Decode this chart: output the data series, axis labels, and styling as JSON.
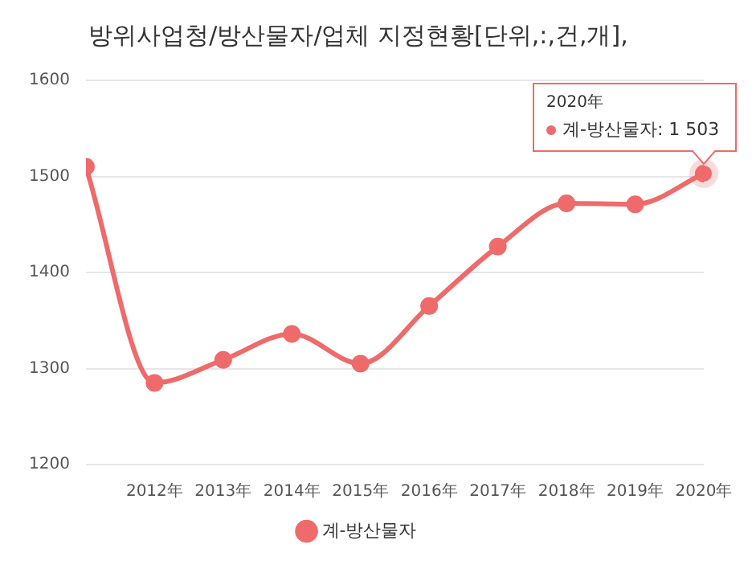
{
  "chart_data": {
    "type": "line",
    "title": "방위사업청/방산물자/업체 지정현황[단위,:,건,개],",
    "categories": [
      null,
      "2012年",
      "2013年",
      "2014年",
      "2015年",
      "2016年",
      "2017年",
      "2018年",
      "2019年",
      "2020年"
    ],
    "series": [
      {
        "name": "계-방산물자",
        "color": "#ef6a6a",
        "values": [
          1510,
          1285,
          1309,
          1336,
          1305,
          1365,
          1427,
          1472,
          1471,
          1503
        ]
      }
    ],
    "ylim": [
      1200,
      1600
    ],
    "yticks": [
      1200,
      1300,
      1400,
      1500,
      1600
    ],
    "grid": "y",
    "legend": "bottom",
    "marker": "circle",
    "line_style": "solid",
    "annotations": [
      {
        "text": "2020年\n계-방산물자: 1 503",
        "x": "2020年",
        "y": 1503
      }
    ]
  }
}
